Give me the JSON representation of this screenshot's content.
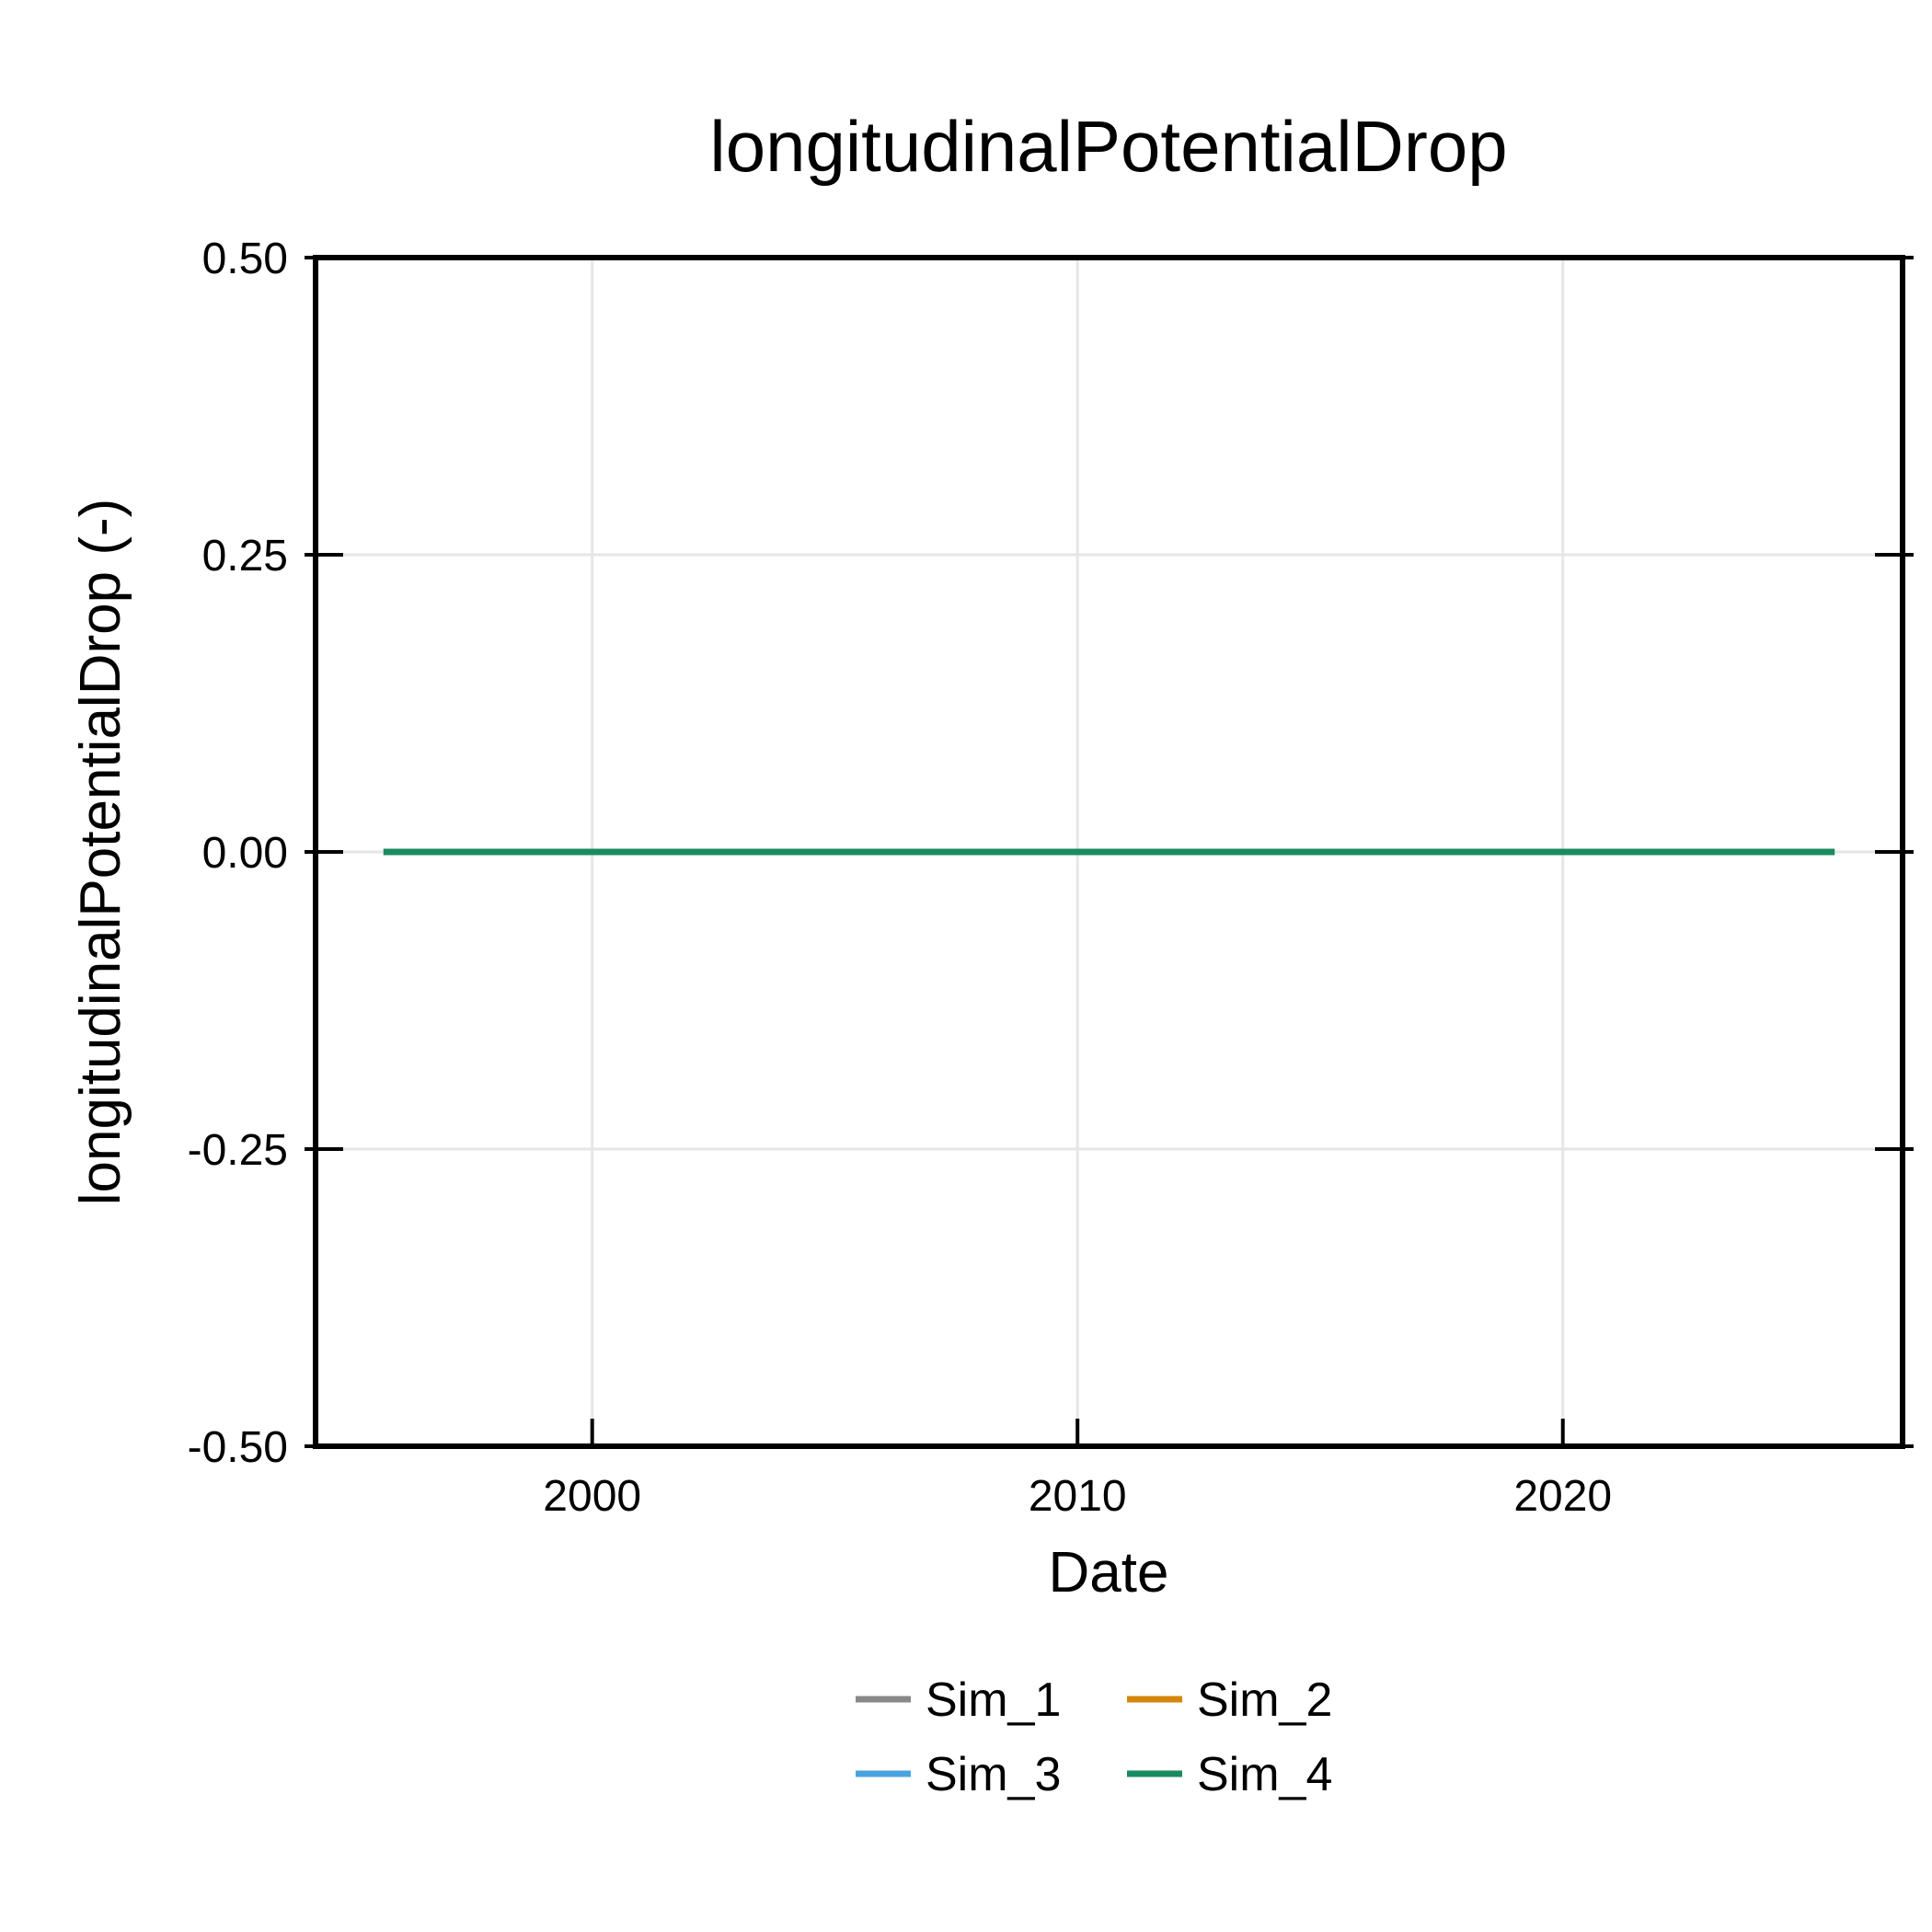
{
  "chart_data": {
    "type": "line",
    "title": "longitudinalPotentialDrop",
    "xlabel": "Date",
    "ylabel": "longitudinalPotentialDrop (-)",
    "xlim": [
      1994.3,
      2027.0
    ],
    "ylim": [
      -0.5,
      0.5
    ],
    "xticks": [
      2000,
      2010,
      2020
    ],
    "xtick_labels": [
      "2000",
      "2010",
      "2020"
    ],
    "yticks": [
      0.5,
      0.25,
      0.0,
      -0.25,
      -0.5
    ],
    "ytick_labels": [
      "0.50",
      "0.25",
      "0.00",
      "-0.25",
      "-0.50"
    ],
    "grid": true,
    "legend_position": "bottom",
    "series": [
      {
        "name": "Sim_1",
        "color": "#888888",
        "x": [
          1995.7,
          2025.6
        ],
        "values": [
          0.0,
          0.0
        ]
      },
      {
        "name": "Sim_2",
        "color": "#d4860b",
        "x": [
          1995.7,
          2025.6
        ],
        "values": [
          0.0,
          0.0
        ]
      },
      {
        "name": "Sim_3",
        "color": "#4aa3df",
        "x": [
          1995.7,
          2025.6
        ],
        "values": [
          0.0,
          0.0
        ]
      },
      {
        "name": "Sim_4",
        "color": "#1a8a60",
        "x": [
          1995.7,
          2025.6
        ],
        "values": [
          0.0,
          0.0
        ]
      }
    ]
  }
}
